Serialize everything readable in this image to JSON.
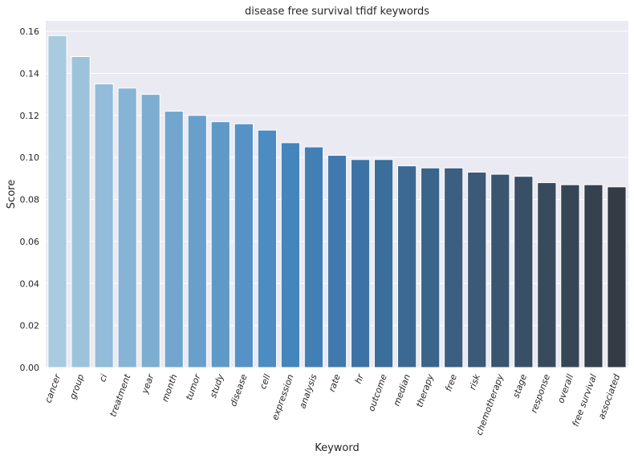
{
  "chart_data": {
    "type": "bar",
    "title": "disease free survival tfidf keywords",
    "xlabel": "Keyword",
    "ylabel": "Score",
    "ylim": [
      0,
      0.165
    ],
    "yticks": [
      "0.00",
      "0.02",
      "0.04",
      "0.06",
      "0.08",
      "0.10",
      "0.12",
      "0.14",
      "0.16"
    ],
    "grid": true,
    "palette": "Blues_d",
    "categories": [
      "cancer",
      "group",
      "ci",
      "treatment",
      "year",
      "month",
      "tumor",
      "study",
      "disease",
      "cell",
      "expression",
      "analysis",
      "rate",
      "hr",
      "outcome",
      "median",
      "therapy",
      "free",
      "risk",
      "chemotherapy",
      "stage",
      "response",
      "overall",
      "free survival",
      "associated"
    ],
    "values": [
      0.158,
      0.148,
      0.135,
      0.133,
      0.13,
      0.122,
      0.12,
      0.117,
      0.116,
      0.113,
      0.107,
      0.105,
      0.101,
      0.099,
      0.099,
      0.096,
      0.095,
      0.095,
      0.093,
      0.092,
      0.091,
      0.088,
      0.087,
      0.087,
      0.086
    ],
    "colors": [
      "#a9cbe0",
      "#9dc3dc",
      "#92bcd9",
      "#87b4d5",
      "#7dadd1",
      "#73a6ce",
      "#699fcb",
      "#5f99c8",
      "#5692c5",
      "#4c8cc2",
      "#4485bd",
      "#417fb5",
      "#3f79ad",
      "#3d73a4",
      "#3c6e9c",
      "#3b6993",
      "#3b648a",
      "#3a5f81",
      "#3a5a78",
      "#39556f",
      "#385066",
      "#374b5d",
      "#364654",
      "#35414c",
      "#343b44"
    ]
  }
}
